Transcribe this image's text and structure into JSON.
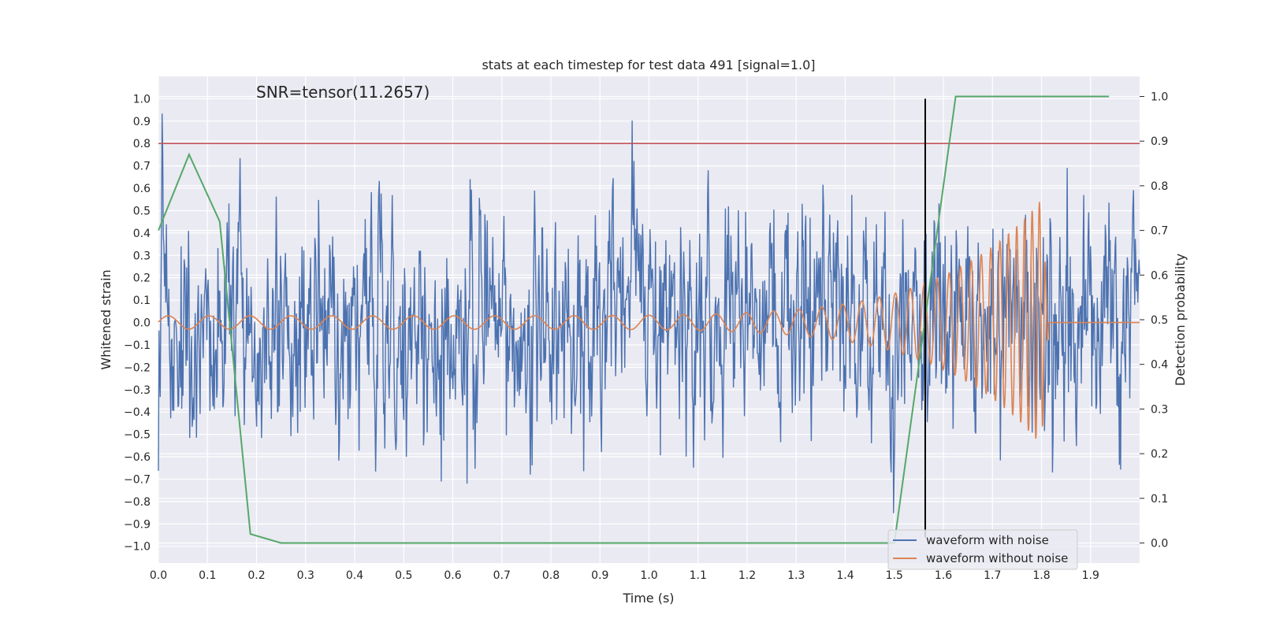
{
  "chart_data": {
    "type": "line",
    "title": "stats at each timestep for test data 491 [signal=1.0]",
    "xlabel": "Time (s)",
    "ylabel": "Whitened strain",
    "y2label": "Detection probability",
    "xlim": [
      0.0,
      2.0
    ],
    "ylim": [
      -1.075,
      1.1
    ],
    "y2lim": [
      -0.045,
      1.045
    ],
    "x_ticks": [
      0.0,
      0.1,
      0.2,
      0.3,
      0.4,
      0.5,
      0.6,
      0.7,
      0.8,
      0.9,
      1.0,
      1.1,
      1.2,
      1.3,
      1.4,
      1.5,
      1.6,
      1.7,
      1.8,
      1.9
    ],
    "x_tick_labels": [
      "0.0",
      "0.1",
      "0.2",
      "0.3",
      "0.4",
      "0.5",
      "0.6",
      "0.7",
      "0.8",
      "0.9",
      "1.0",
      "1.1",
      "1.2",
      "1.3",
      "1.4",
      "1.5",
      "1.6",
      "1.7",
      "1.8",
      "1.9"
    ],
    "y_ticks": [
      -1.0,
      -0.9,
      -0.8,
      -0.7,
      -0.6,
      -0.5,
      -0.4,
      -0.3,
      -0.2,
      -0.1,
      0.0,
      0.1,
      0.2,
      0.3,
      0.4,
      0.5,
      0.6,
      0.7,
      0.8,
      0.9,
      1.0
    ],
    "y_tick_labels": [
      "−1.0",
      "−0.9",
      "−0.8",
      "−0.7",
      "−0.6",
      "−0.5",
      "−0.4",
      "−0.3",
      "−0.2",
      "−0.1",
      "0.0",
      "0.1",
      "0.2",
      "0.3",
      "0.4",
      "0.5",
      "0.6",
      "0.7",
      "0.8",
      "0.9",
      "1.0"
    ],
    "y2_ticks": [
      0.0,
      0.1,
      0.2,
      0.3,
      0.4,
      0.5,
      0.6,
      0.7,
      0.8,
      0.9,
      1.0
    ],
    "y2_tick_labels": [
      "0.0",
      "0.1",
      "0.2",
      "0.3",
      "0.4",
      "0.5",
      "0.6",
      "0.7",
      "0.8",
      "0.9",
      "1.0"
    ],
    "annotation": "SNR=tensor(11.2657)",
    "annotation_x": 0.2,
    "annotation_y": 1.0,
    "threshold": {
      "value": 0.8,
      "color": "#c44e52"
    },
    "event_marker": {
      "x": 1.563,
      "y_from": -0.96,
      "y_to": 1.0,
      "color": "#000000"
    },
    "noisy_waveform": {
      "name": "waveform with noise",
      "color": "#4c72b0",
      "x_start": 0.0,
      "x_end": 2.0,
      "samples": 1600,
      "amplitude_range": [
        -0.96,
        1.0
      ]
    },
    "clean_waveform": {
      "name": "waveform without noise",
      "color": "#dd8452",
      "chirp": {
        "t_merger": 1.8,
        "f_start": 12,
        "f_end": 70,
        "amp_start": 0.03,
        "amp_end": 0.55
      }
    },
    "series": [
      {
        "name": "detection probability",
        "axis": "right",
        "color": "#55a868",
        "x": [
          0.0,
          0.0625,
          0.125,
          0.1875,
          0.25,
          0.3125,
          0.375,
          0.4375,
          0.5,
          0.5625,
          0.625,
          0.6875,
          0.75,
          0.8125,
          0.875,
          0.9375,
          1.0,
          1.0625,
          1.125,
          1.1875,
          1.25,
          1.3125,
          1.375,
          1.4375,
          1.5,
          1.5625,
          1.625,
          1.6875,
          1.75,
          1.8125,
          1.875,
          1.9375
        ],
        "values": [
          0.7,
          0.87,
          0.72,
          0.02,
          0.0,
          0.0,
          0.0,
          0.0,
          0.0,
          0.0,
          0.0,
          0.0,
          0.0,
          0.0,
          0.0,
          0.0,
          0.0,
          0.0,
          0.0,
          0.0,
          0.0,
          0.0,
          0.0,
          0.0,
          0.0,
          0.5,
          1.0,
          1.0,
          1.0,
          1.0,
          1.0,
          1.0
        ]
      }
    ],
    "legend": {
      "position": "bottom-right",
      "entries": [
        {
          "label": "waveform with noise",
          "color": "#4c72b0"
        },
        {
          "label": "waveform without noise",
          "color": "#dd8452"
        }
      ]
    },
    "background": "#eaeaf2",
    "grid": true
  }
}
